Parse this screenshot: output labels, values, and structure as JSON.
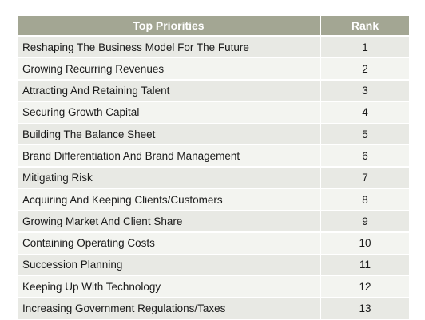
{
  "table": {
    "headers": {
      "priority": "Top Priorities",
      "rank": "Rank"
    },
    "rows": [
      {
        "priority": "Reshaping The Business Model For The Future",
        "rank": "1"
      },
      {
        "priority": "Growing Recurring Revenues",
        "rank": "2"
      },
      {
        "priority": "Attracting And Retaining Talent",
        "rank": "3"
      },
      {
        "priority": "Securing Growth Capital",
        "rank": "4"
      },
      {
        "priority": "Building The Balance Sheet",
        "rank": "5"
      },
      {
        "priority": "Brand Differentiation And Brand Management",
        "rank": "6"
      },
      {
        "priority": "Mitigating Risk",
        "rank": "7"
      },
      {
        "priority": "Acquiring And Keeping Clients/Customers",
        "rank": "8"
      },
      {
        "priority": "Growing Market And Client Share",
        "rank": "9"
      },
      {
        "priority": "Containing Operating Costs",
        "rank": "10"
      },
      {
        "priority": "Succession Planning",
        "rank": "11"
      },
      {
        "priority": "Keeping Up With Technology",
        "rank": "12"
      },
      {
        "priority": "Increasing Government Regulations/Taxes",
        "rank": "13"
      }
    ]
  },
  "colors": {
    "header_bg": "#a3a693",
    "row_bg": "#e8e9e4",
    "row_alt_bg": "#f3f4f0"
  }
}
